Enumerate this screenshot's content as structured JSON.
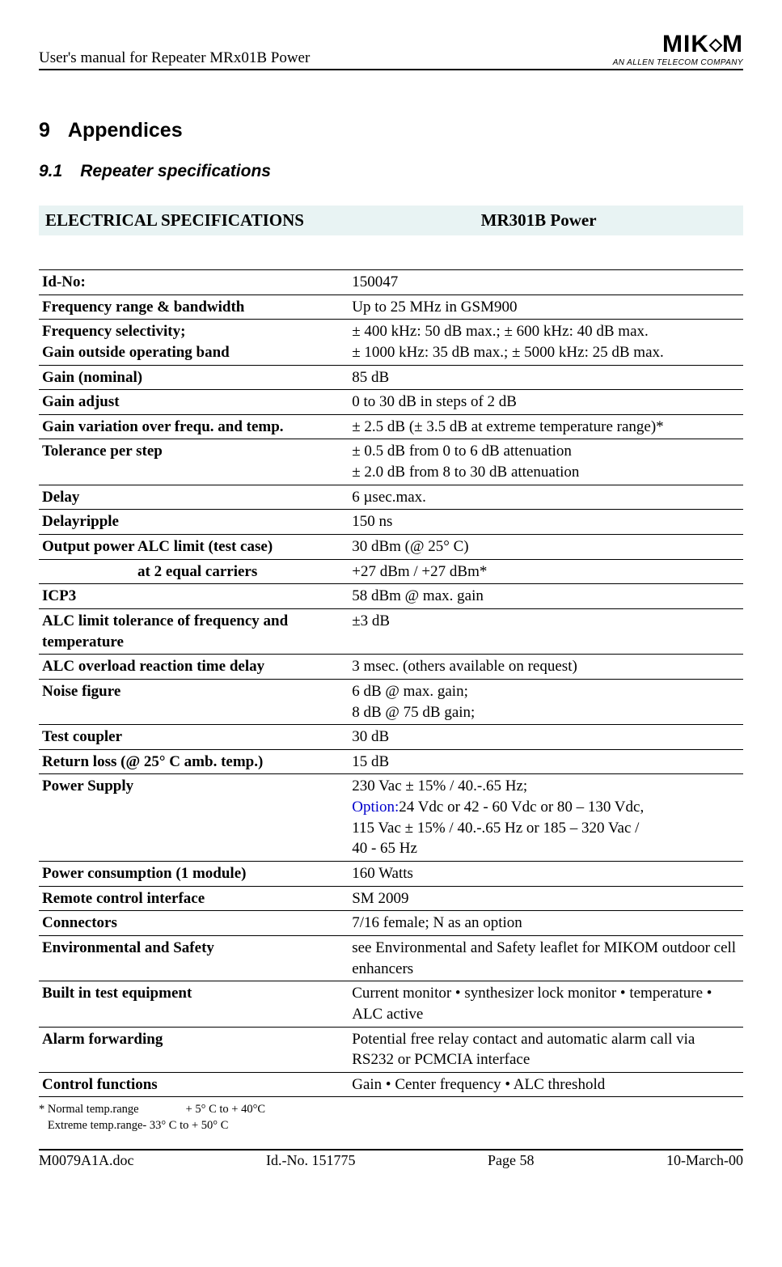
{
  "header": {
    "left": "User's manual for Repeater MRx01B Power",
    "logo_main_pre": "MIK",
    "logo_main_post": "M",
    "logo_sub": "AN ALLEN TELECOM COMPANY"
  },
  "section": {
    "num": "9",
    "title": "Appendices"
  },
  "subsection": {
    "num": "9.1",
    "title": "Repeater specifications"
  },
  "spec_header": {
    "left": "ELECTRICAL SPECIFICATIONS",
    "right": "MR301B Power"
  },
  "rows": [
    {
      "label": "Id-No:",
      "value": "150047"
    },
    {
      "label": "Frequency range & bandwidth",
      "value": "Up to 25 MHz in GSM900"
    },
    {
      "label": "Frequency selectivity;\nGain outside operating band",
      "value": "± 400 kHz: 50 dB max.; ± 600 kHz: 40 dB max.\n± 1000 kHz: 35 dB max.; ± 5000 kHz: 25 dB max."
    },
    {
      "label": "Gain (nominal)",
      "value": "85 dB"
    },
    {
      "label": "Gain adjust",
      "value": "0 to 30 dB in steps of 2 dB"
    },
    {
      "label": "Gain variation over frequ. and temp.",
      "value": "± 2.5 dB (± 3.5 dB at extreme temperature range)*"
    },
    {
      "label": "Tolerance per step",
      "value": "± 0.5 dB from 0 to 6 dB attenuation\n± 2.0 dB from 8 to 30 dB attenuation"
    },
    {
      "label": "Delay",
      "value": "6 µsec.max."
    },
    {
      "label": "Delayripple",
      "value": "150 ns"
    },
    {
      "label": "Output power ALC limit (test case)",
      "value": "30 dBm (@ 25° C)"
    },
    {
      "label_indent": "at 2 equal carriers",
      "value": "+27 dBm / +27 dBm*"
    },
    {
      "label": "ICP3",
      "value": "58 dBm @ max. gain"
    },
    {
      "label": "ALC limit tolerance of frequency and temperature",
      "value": "±3 dB"
    },
    {
      "label": "ALC overload reaction time delay",
      "value": "3 msec. (others available on request)"
    },
    {
      "label": "Noise figure",
      "value": "6 dB @ max. gain;\n8 dB @ 75 dB gain;"
    },
    {
      "label": "Test coupler",
      "value": "30 dB"
    },
    {
      "label": "Return loss (@ 25° C amb. temp.)",
      "value": "15 dB"
    },
    {
      "label": "Power Supply",
      "value_html": "230 Vac ± 15% / 40.-.65 Hz;\n<span class=\"option\">Option:</span>24 Vdc or 42 - 60 Vdc or 80 – 130 Vdc,\n115 Vac ± 15% / 40.-.65 Hz or 185 – 320 Vac /\n40 - 65 Hz"
    },
    {
      "label": "Power consumption (1 module)",
      "value": "160 Watts"
    },
    {
      "label": "Remote control interface",
      "value": "SM 2009"
    },
    {
      "label": "Connectors",
      "value": "7/16 female; N as an option"
    },
    {
      "label": "Environmental and Safety",
      "value": "see Environmental and Safety leaflet for MIKOM outdoor cell enhancers"
    },
    {
      "label": "Built in test equipment",
      "value": "Current monitor • synthesizer lock monitor • temperature • ALC active"
    },
    {
      "label": "Alarm forwarding",
      "value": "Potential free relay contact and automatic alarm call via RS232 or PCMCIA interface"
    },
    {
      "label": "Control functions",
      "value": "Gain • Center frequency • ALC threshold"
    }
  ],
  "footnote": {
    "line1_left": "* Normal temp.range",
    "line1_right": "+ 5° C to + 40°C",
    "line2": "   Extreme temp.range- 33° C to + 50° C"
  },
  "footer": {
    "c1": "M0079A1A.doc",
    "c2": "Id.-No. 151775",
    "c3": "Page 58",
    "c4": "10-March-00"
  }
}
